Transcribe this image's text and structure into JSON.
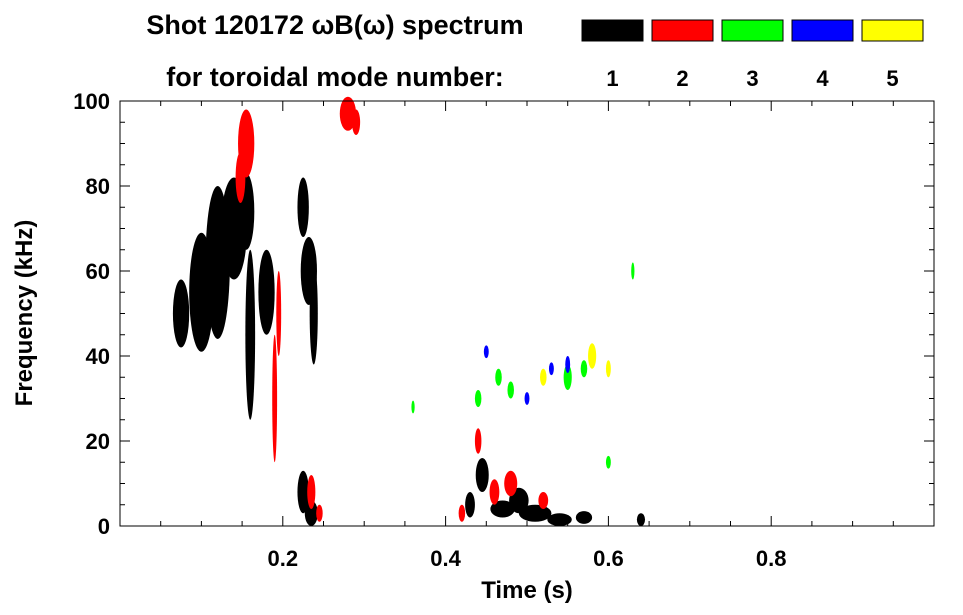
{
  "chart_data": {
    "type": "heatmap",
    "title_line1": "Shot 120172 ωB(ω) spectrum",
    "title_line2": "for toroidal mode number:",
    "xlabel": "Time (s)",
    "ylabel": "Frequency (kHz)",
    "xlim": [
      0.0,
      1.0
    ],
    "ylim": [
      0,
      100
    ],
    "x_ticks": [
      0.2,
      0.4,
      0.6,
      0.8
    ],
    "x_tick_labels": [
      "0.2",
      "0.4",
      "0.6",
      "0.8"
    ],
    "y_ticks": [
      0,
      20,
      40,
      60,
      80,
      100
    ],
    "y_tick_labels": [
      "0",
      "20",
      "40",
      "60",
      "80",
      "100"
    ],
    "legend": [
      {
        "label": "1",
        "color": "#000000"
      },
      {
        "label": "2",
        "color": "#ff0000"
      },
      {
        "label": "3",
        "color": "#00ff00"
      },
      {
        "label": "4",
        "color": "#0000ff"
      },
      {
        "label": "5",
        "color": "#ffff00"
      }
    ],
    "series": [
      {
        "mode": "1",
        "color": "#000000",
        "blobs": [
          [
            0.075,
            50,
            0.01,
            8
          ],
          [
            0.1,
            55,
            0.015,
            14
          ],
          [
            0.12,
            62,
            0.015,
            18
          ],
          [
            0.14,
            70,
            0.016,
            12
          ],
          [
            0.155,
            74,
            0.01,
            9
          ],
          [
            0.16,
            45,
            0.006,
            20
          ],
          [
            0.18,
            55,
            0.01,
            10
          ],
          [
            0.225,
            75,
            0.007,
            7
          ],
          [
            0.232,
            60,
            0.01,
            8
          ],
          [
            0.238,
            50,
            0.005,
            12
          ],
          [
            0.225,
            8,
            0.007,
            5
          ],
          [
            0.235,
            3,
            0.008,
            3
          ],
          [
            0.43,
            5,
            0.006,
            3
          ],
          [
            0.445,
            12,
            0.008,
            4
          ],
          [
            0.47,
            4,
            0.015,
            2
          ],
          [
            0.49,
            6,
            0.012,
            3
          ],
          [
            0.51,
            3,
            0.02,
            2
          ],
          [
            0.54,
            1.5,
            0.015,
            1.5
          ],
          [
            0.57,
            2,
            0.01,
            1.5
          ],
          [
            0.64,
            1.5,
            0.005,
            1.5
          ]
        ]
      },
      {
        "mode": "2",
        "color": "#ff0000",
        "blobs": [
          [
            0.155,
            90,
            0.01,
            8
          ],
          [
            0.148,
            82,
            0.006,
            6
          ],
          [
            0.19,
            30,
            0.003,
            15
          ],
          [
            0.195,
            50,
            0.003,
            10
          ],
          [
            0.235,
            8,
            0.005,
            4
          ],
          [
            0.245,
            3,
            0.004,
            2
          ],
          [
            0.28,
            97,
            0.01,
            4
          ],
          [
            0.29,
            95,
            0.005,
            3
          ],
          [
            0.44,
            20,
            0.004,
            3
          ],
          [
            0.46,
            8,
            0.006,
            3
          ],
          [
            0.48,
            10,
            0.008,
            3
          ],
          [
            0.52,
            6,
            0.006,
            2
          ],
          [
            0.42,
            3,
            0.004,
            2
          ]
        ]
      },
      {
        "mode": "3",
        "color": "#00ff00",
        "blobs": [
          [
            0.44,
            30,
            0.004,
            2
          ],
          [
            0.465,
            35,
            0.004,
            2
          ],
          [
            0.48,
            32,
            0.004,
            2
          ],
          [
            0.55,
            35,
            0.005,
            3
          ],
          [
            0.57,
            37,
            0.004,
            2
          ],
          [
            0.6,
            15,
            0.003,
            1.5
          ],
          [
            0.63,
            60,
            0.002,
            2
          ],
          [
            0.36,
            28,
            0.002,
            1.5
          ]
        ]
      },
      {
        "mode": "4",
        "color": "#0000ff",
        "blobs": [
          [
            0.5,
            30,
            0.003,
            1.5
          ],
          [
            0.53,
            37,
            0.003,
            1.5
          ],
          [
            0.55,
            38,
            0.003,
            2
          ],
          [
            0.45,
            41,
            0.003,
            1.5
          ]
        ]
      },
      {
        "mode": "5",
        "color": "#ffff00",
        "blobs": [
          [
            0.58,
            40,
            0.005,
            3
          ],
          [
            0.52,
            35,
            0.004,
            2
          ],
          [
            0.6,
            37,
            0.003,
            2
          ]
        ]
      }
    ]
  }
}
